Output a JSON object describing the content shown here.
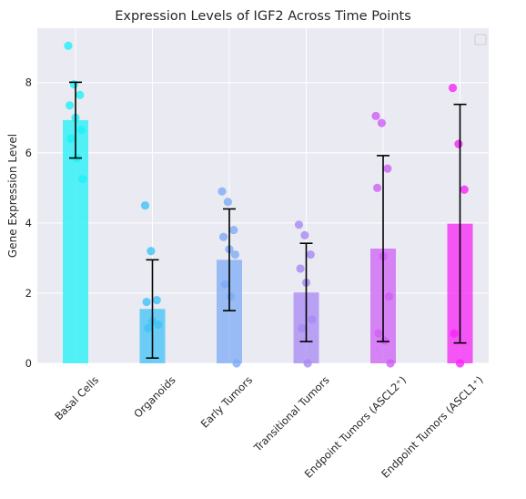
{
  "chart_data": {
    "type": "bar",
    "title": "Expression Levels of IGF2 Across Time Points",
    "xlabel": "",
    "ylabel": "Gene Expression Level",
    "ylim": [
      0,
      9.55
    ],
    "yticks": [
      "0",
      "2",
      "4",
      "6",
      "8"
    ],
    "grid": true,
    "legend": "top-right (empty)",
    "categories": [
      "Basal Cells",
      "Organoids",
      "Early Tumors",
      "Transitional Tumors",
      "Endpoint Tumors (ASCL2⁺)",
      "Endpoint Tumors (ASCL1⁺)"
    ],
    "values": [
      6.93,
      1.55,
      2.95,
      2.02,
      3.27,
      3.98
    ],
    "errors": [
      1.08,
      1.4,
      1.45,
      1.4,
      2.65,
      3.4
    ],
    "colors": [
      "#1ef0f7",
      "#40c3f5",
      "#7dabf5",
      "#a788f3",
      "#cd5ff4",
      "#f624f6"
    ],
    "points": [
      [
        9.05,
        7.95,
        7.65,
        7.35,
        7.0,
        6.65,
        6.4,
        5.85,
        5.25
      ],
      [
        4.5,
        3.2,
        1.8,
        1.75,
        1.2,
        1.1,
        1.0
      ],
      [
        4.9,
        4.6,
        3.8,
        3.6,
        3.25,
        3.1,
        2.25,
        1.9,
        0.0
      ],
      [
        3.95,
        3.65,
        3.1,
        2.7,
        2.3,
        1.25,
        1.0,
        0.0
      ],
      [
        7.05,
        6.85,
        5.55,
        5.0,
        3.05,
        1.9,
        0.85,
        0.65,
        0.0
      ],
      [
        7.85,
        6.25,
        4.95,
        0.85,
        0.0
      ]
    ],
    "background": "#eaeaf2",
    "grid_color": "#ffffff"
  }
}
